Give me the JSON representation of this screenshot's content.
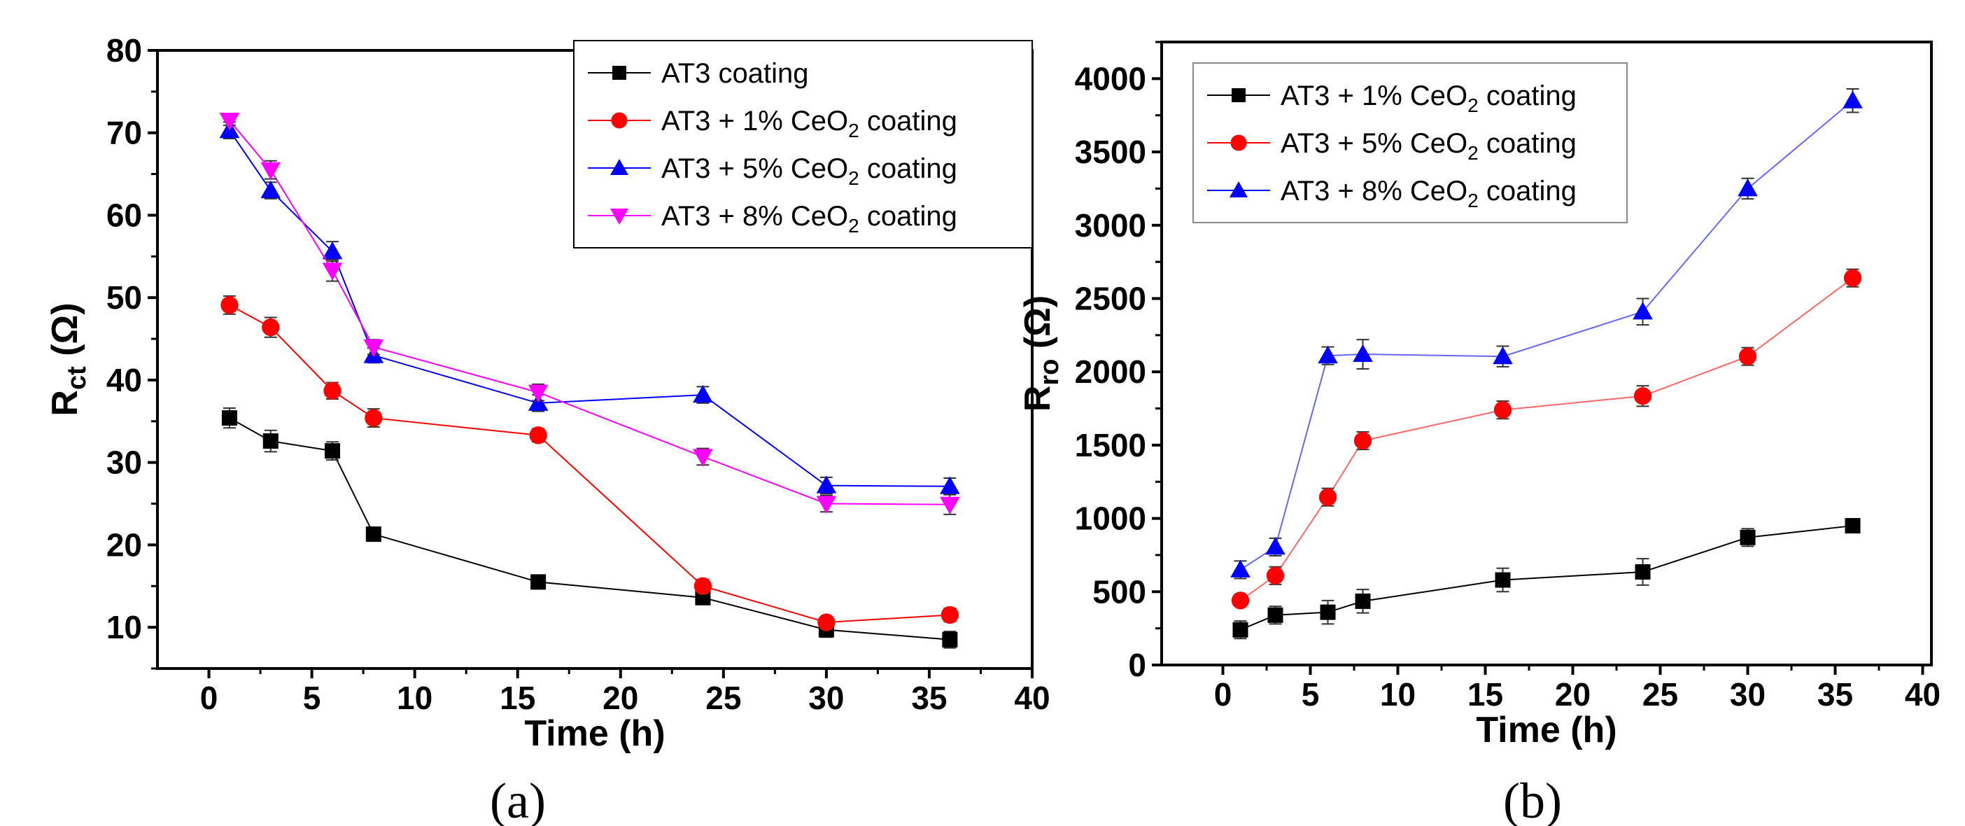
{
  "chart_data": [
    {
      "type": "line",
      "panel_label": "(a)",
      "xlabel": "Time (h)",
      "ylabel": "R",
      "ylabel_sub": "ct",
      "ylabel_suffix": " (Ω)",
      "xlim": [
        -2.5,
        40
      ],
      "ylim": [
        5,
        80
      ],
      "xticks": [
        0,
        5,
        10,
        15,
        20,
        25,
        30,
        35,
        40
      ],
      "yticks": [
        10,
        20,
        30,
        40,
        50,
        60,
        70,
        80
      ],
      "yminor": 5,
      "legend_position": "top-right",
      "x": [
        1,
        3,
        6,
        8,
        16,
        24,
        30,
        36
      ],
      "series": [
        {
          "name": "AT3 coating",
          "label": "AT3 coating",
          "sub": "",
          "suffix": "",
          "color": "#000000",
          "marker": "square",
          "values": [
            35.4,
            32.6,
            31.4,
            21.3,
            15.5,
            13.6,
            9.7,
            8.5
          ],
          "error": [
            1.2,
            1.3,
            1.1,
            0.8,
            0.8,
            0.8,
            0.9,
            1.0
          ]
        },
        {
          "name": "AT3 + 1% CeO2 coating",
          "label": "AT3 + 1% CeO",
          "sub": "2",
          "suffix": " coating",
          "color": "#ff0000",
          "marker": "circle",
          "values": [
            49.1,
            46.4,
            38.7,
            35.4,
            33.3,
            15.0,
            10.6,
            11.5
          ],
          "error": [
            1.1,
            1.2,
            1.0,
            1.1,
            0.8,
            0.8,
            0.6,
            0.8
          ]
        },
        {
          "name": "AT3 + 5% CeO2 coating",
          "label": "AT3 + 5% CeO",
          "sub": "2",
          "suffix": " coating",
          "color": "#0000ff",
          "marker": "triangle-up",
          "values": [
            70.3,
            63.0,
            55.6,
            43.0,
            37.2,
            38.2,
            27.2,
            27.1
          ],
          "error": [
            1.0,
            1.0,
            1.2,
            0.9,
            1.0,
            1.0,
            1.0,
            1.0
          ]
        },
        {
          "name": "AT3 + 8% CeO2 coating",
          "label": "AT3 + 8% CeO",
          "sub": "2",
          "suffix": " coating",
          "color": "#ff00ff",
          "marker": "triangle-down",
          "values": [
            71.5,
            65.5,
            53.3,
            44.0,
            38.5,
            30.7,
            25.0,
            24.9
          ],
          "error": [
            0.6,
            1.1,
            1.3,
            0.9,
            1.0,
            1.0,
            1.0,
            1.2
          ]
        }
      ]
    },
    {
      "type": "line",
      "panel_label": "(b)",
      "xlabel": "Time (h)",
      "ylabel": "R",
      "ylabel_sub": "ro",
      "ylabel_suffix": " (Ω)",
      "xlim": [
        -3.5,
        40.5
      ],
      "ylim": [
        0,
        4250
      ],
      "xticks": [
        0,
        5,
        10,
        15,
        20,
        25,
        30,
        35,
        40
      ],
      "yticks": [
        0,
        500,
        1000,
        1500,
        2000,
        2500,
        3000,
        3500,
        4000
      ],
      "yminor": 250,
      "legend_position": "top-left",
      "x": [
        1,
        3,
        6,
        8,
        16,
        24,
        30,
        36
      ],
      "series": [
        {
          "name": "AT3 + 1% CeO2 coating",
          "label": "AT3 + 1% CeO",
          "sub": "2",
          "suffix": " coating",
          "color": "#000000",
          "marker": "square",
          "values": [
            240,
            340,
            360,
            435,
            580,
            635,
            870,
            950
          ],
          "error": [
            60,
            60,
            80,
            80,
            80,
            90,
            60,
            40
          ]
        },
        {
          "name": "AT3 + 5% CeO2 coating",
          "label": "AT3 + 5% CeO",
          "sub": "2",
          "suffix": " coating",
          "color": "#ff0000",
          "marker": "circle",
          "values": [
            440,
            610,
            1145,
            1530,
            1740,
            1835,
            2105,
            2640
          ],
          "error": [
            40,
            60,
            60,
            60,
            60,
            70,
            60,
            60
          ]
        },
        {
          "name": "AT3 + 8% CeO2 coating",
          "label": "AT3 + 8% CeO",
          "sub": "2",
          "suffix": " coating",
          "color": "#0000ff",
          "marker": "triangle-up",
          "values": [
            650,
            805,
            2110,
            2120,
            2105,
            2410,
            3250,
            3850
          ],
          "error": [
            60,
            60,
            60,
            100,
            70,
            90,
            70,
            80
          ]
        }
      ]
    }
  ]
}
